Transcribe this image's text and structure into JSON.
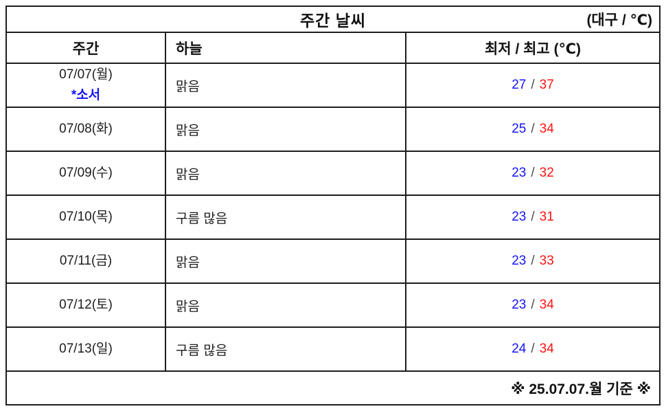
{
  "title": {
    "main": "주간 날씨",
    "unit": "(대구 / ℃)"
  },
  "columns": {
    "day": "주간",
    "sky": "하늘",
    "temp": "최저 / 최고 (℃)"
  },
  "temp_separator": "/",
  "rows": [
    {
      "date": "07/07(월)",
      "note": "*소서",
      "sky": "맑음",
      "min": "27",
      "max": "37"
    },
    {
      "date": "07/08(화)",
      "sky": "맑음",
      "min": "25",
      "max": "34"
    },
    {
      "date": "07/09(수)",
      "sky": "맑음",
      "min": "23",
      "max": "32"
    },
    {
      "date": "07/10(목)",
      "sky": "구름 많음",
      "min": "23",
      "max": "31"
    },
    {
      "date": "07/11(금)",
      "sky": "맑음",
      "min": "23",
      "max": "33"
    },
    {
      "date": "07/12(토)",
      "sky": "맑음",
      "min": "23",
      "max": "34"
    },
    {
      "date": "07/13(일)",
      "sky": "구름 많음",
      "min": "24",
      "max": "34"
    }
  ],
  "footer": {
    "note": "※ 25.07.07.월 기준 ※"
  },
  "colors": {
    "min_temp_blue": "#1414ff",
    "max_temp_red": "#ff1414",
    "note_blue": "#1414ff",
    "slash_gray": "#4a4a4a",
    "border_black": "#1d1d1d"
  }
}
